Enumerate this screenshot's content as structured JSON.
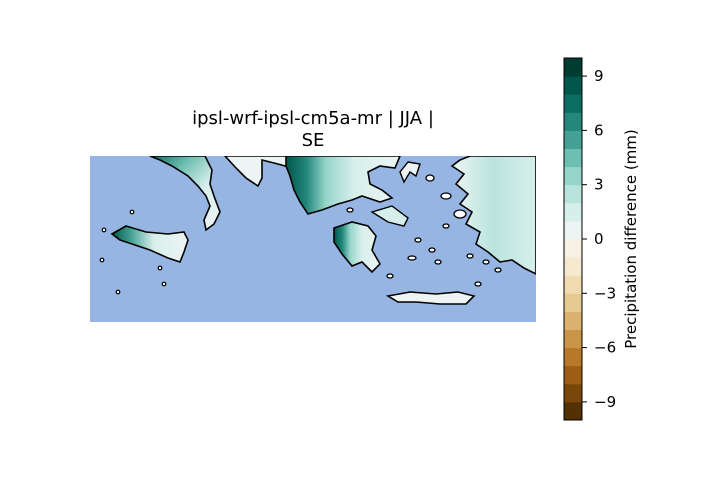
{
  "title_line1": "ipsl-wrf-ipsl-cm5a-mr | JJA |",
  "title_line2": "SE",
  "colorbar": {
    "label": "Precipitation difference (mm)",
    "range": [
      -10,
      10
    ],
    "tick_values": [
      -9,
      -6,
      -3,
      0,
      3,
      6,
      9
    ],
    "tick_labels": [
      "−9",
      "−6",
      "−3",
      "0",
      "3",
      "6",
      "9"
    ],
    "levels": 20,
    "colors": [
      "#543005",
      "#7a470a",
      "#9d5d12",
      "#b8782a",
      "#cb9549",
      "#dab26e",
      "#e6cb91",
      "#f0dcb0",
      "#f5ead0",
      "#f6f1e4",
      "#edf5f4",
      "#d7efeb",
      "#b9e4dc",
      "#96d5ca",
      "#6dbfb1",
      "#45a195",
      "#23877b",
      "#0b6e63",
      "#01564b",
      "#003c30"
    ]
  },
  "map": {
    "ocean_color": "#97b5e2",
    "land_color": "#ffffff",
    "coastline_color": "#000000"
  }
}
